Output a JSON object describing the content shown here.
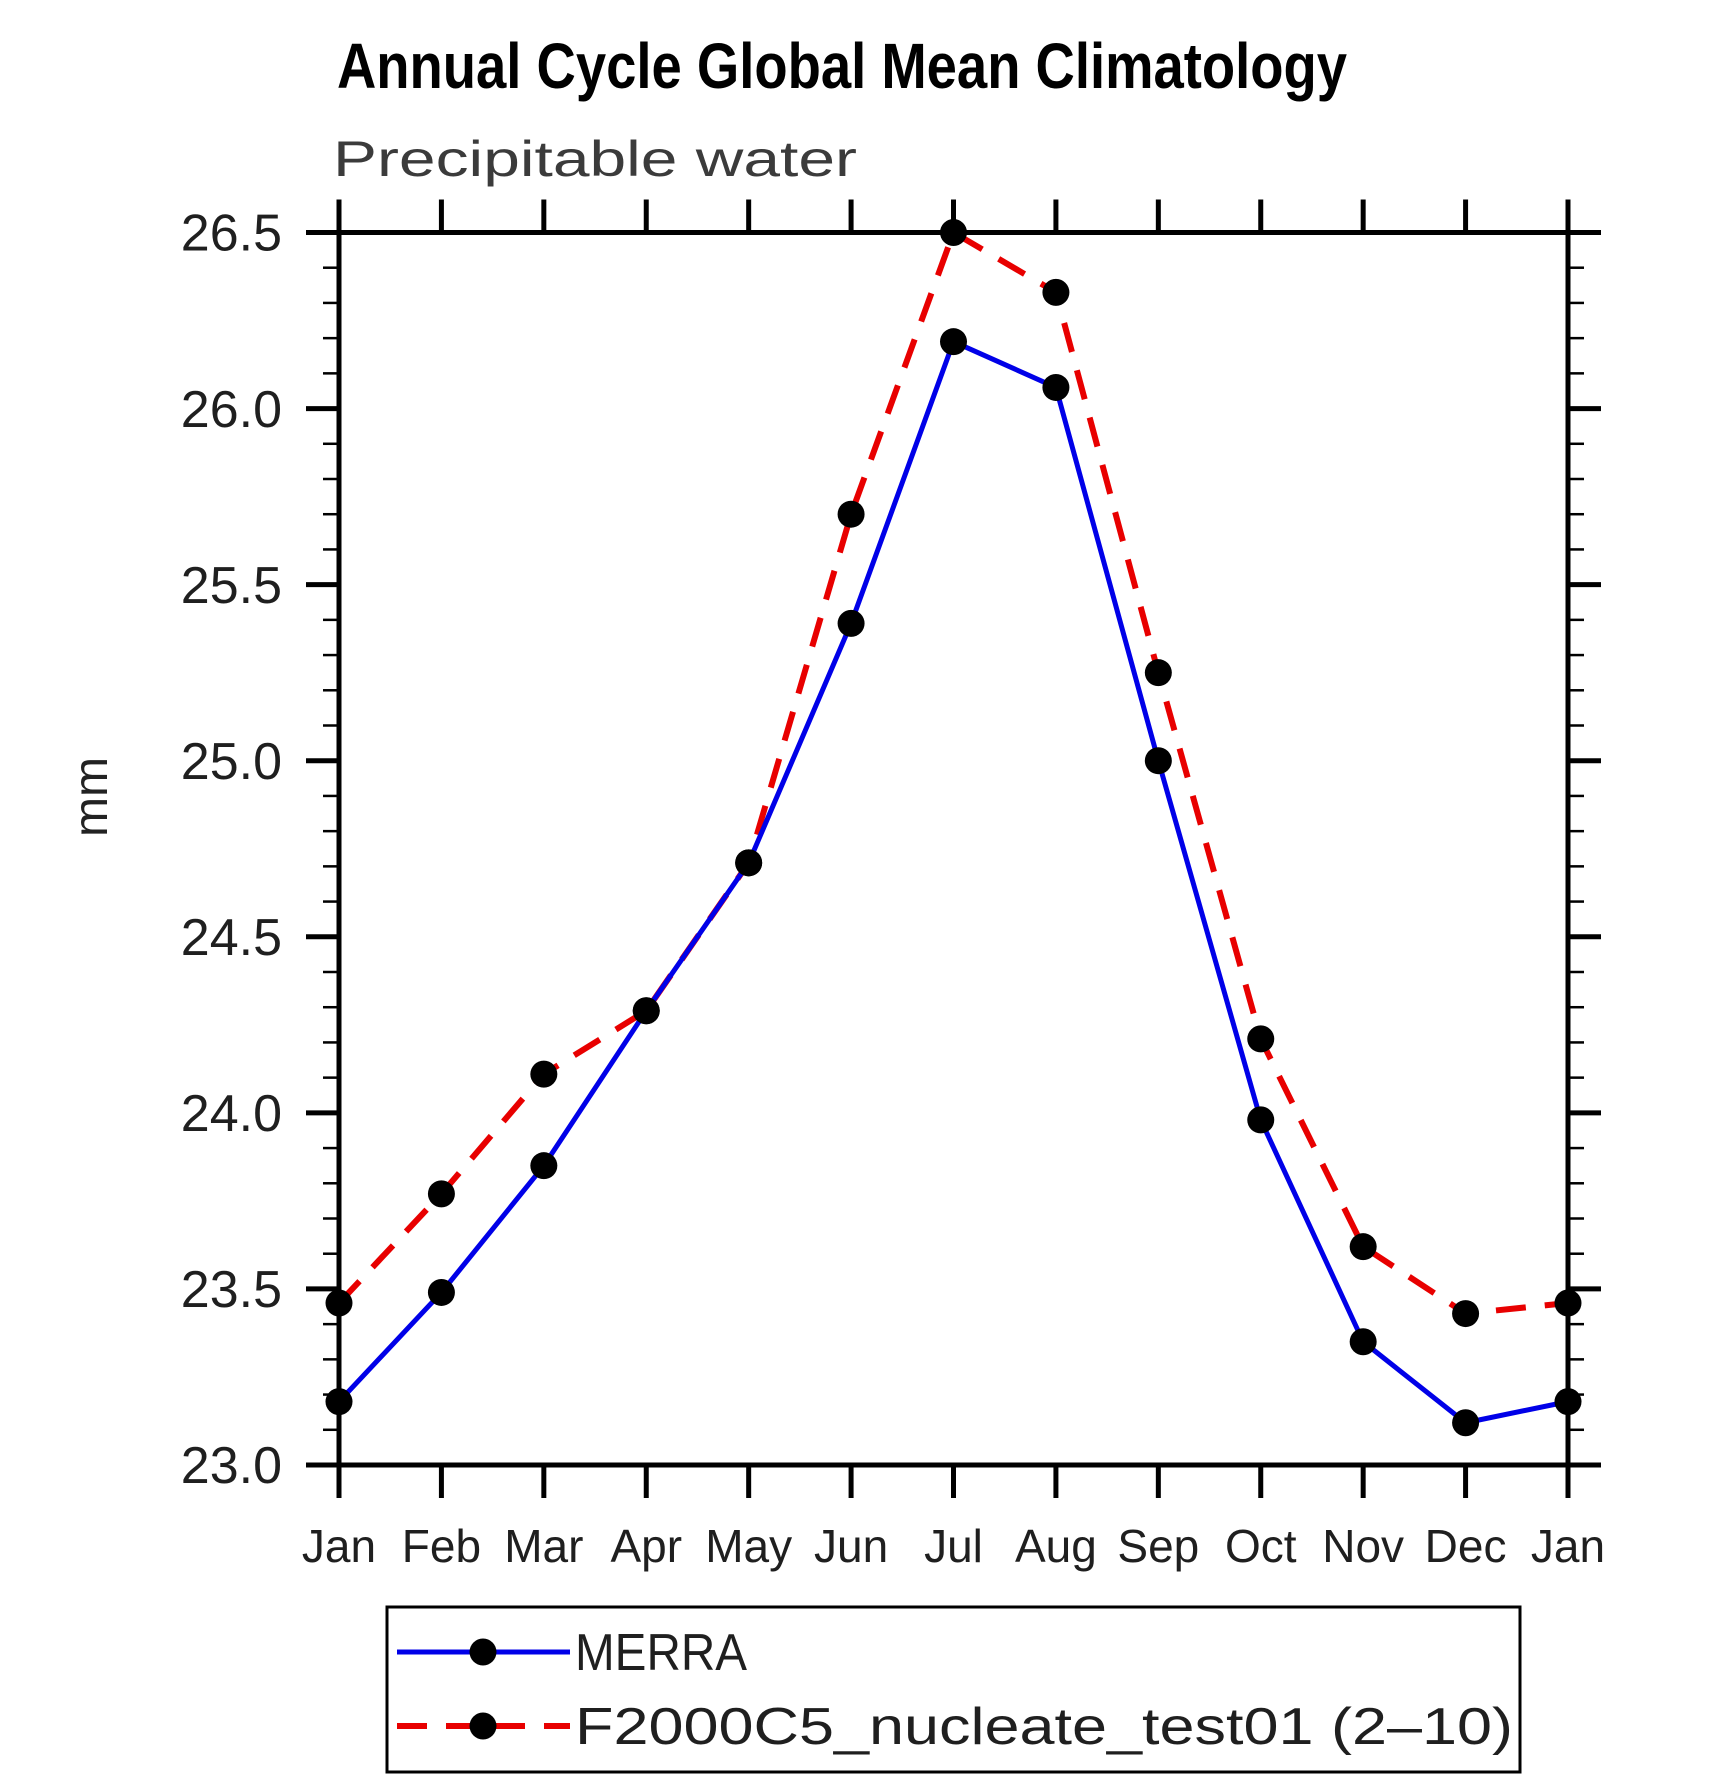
{
  "page": {
    "background": "#ffffff"
  },
  "header": {
    "title": "Annual Cycle Global Mean Climatology",
    "subtitle": "Precipitable water"
  },
  "chart_data": {
    "type": "line",
    "title": "Annual Cycle Global Mean Climatology",
    "subtitle": "Precipitable water",
    "xlabel": "",
    "ylabel": "mm",
    "categories": [
      "Jan",
      "Feb",
      "Mar",
      "Apr",
      "May",
      "Jun",
      "Jul",
      "Aug",
      "Sep",
      "Oct",
      "Nov",
      "Dec",
      "Jan"
    ],
    "ylim": [
      23.0,
      26.5
    ],
    "ytick_major_step": 0.5,
    "ytick_minor_step": 0.1,
    "ytick_labels": [
      "23.0",
      "23.5",
      "24.0",
      "24.5",
      "25.0",
      "25.5",
      "26.0",
      "26.5"
    ],
    "grid": false,
    "legend_position": "bottom",
    "axis_color": "#000000",
    "label_color": "#1f1f1f",
    "subtitle_color": "#3b3b3b",
    "marker": "filled-circle",
    "marker_color": "#000000",
    "series": [
      {
        "name": "MERRA",
        "color": "#0000e8",
        "style": "solid",
        "values": [
          23.18,
          23.49,
          23.85,
          24.29,
          24.71,
          25.39,
          26.19,
          26.06,
          25.0,
          23.98,
          23.35,
          23.12,
          23.18
        ]
      },
      {
        "name": "F2000C5_nucleate_test01 (2–10)",
        "color": "#e80000",
        "style": "dashed",
        "values": [
          23.46,
          23.77,
          24.11,
          24.29,
          24.71,
          25.7,
          26.5,
          26.33,
          25.25,
          24.21,
          23.62,
          23.43,
          23.46
        ]
      }
    ]
  }
}
